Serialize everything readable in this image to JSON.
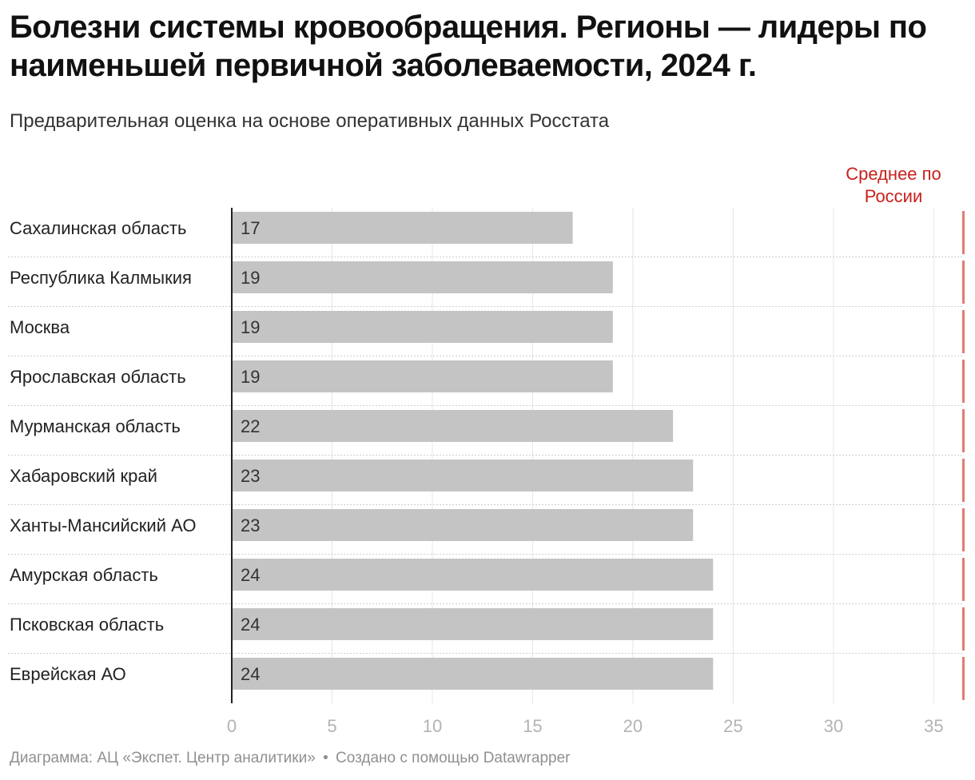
{
  "title": "Болезни системы кровообращения. Регионы — лидеры по наименьшей первичной заболеваемости, 2024 г.",
  "subtitle": "Предварительная оценка на основе оперативных данных Росстата",
  "colors": {
    "bar": "#c4c4c4",
    "reference": "#e07b75",
    "reference_label": "#c7211d",
    "axis_label": "#b3b3b3",
    "grid": "#e6e6e6"
  },
  "chart_data": {
    "type": "bar",
    "orientation": "horizontal",
    "title": "Болезни системы кровообращения. Регионы — лидеры по наименьшей первичной заболеваемости, 2024 г.",
    "categories": [
      "Сахалинская область",
      "Республика Калмыкия",
      "Москва",
      "Ярославская область",
      "Мурманская область",
      "Хабаровский край",
      "Ханты-Мансийский АО",
      "Амурская область",
      "Псковская область",
      "Еврейская АО"
    ],
    "values": [
      17,
      19,
      19,
      19,
      22,
      23,
      23,
      24,
      24,
      24
    ],
    "xlim": [
      0,
      36.5
    ],
    "xticks": [
      0,
      5,
      10,
      15,
      20,
      25,
      30,
      35
    ],
    "grid": true,
    "reference_line": {
      "value": 36.5,
      "label_lines": [
        "Среднее по",
        "России"
      ]
    }
  },
  "footer": {
    "source": "Диаграмма: АЦ «Экспет. Центр аналитики»",
    "separator": "•",
    "credit": "Создано с помощью Datawrapper"
  }
}
